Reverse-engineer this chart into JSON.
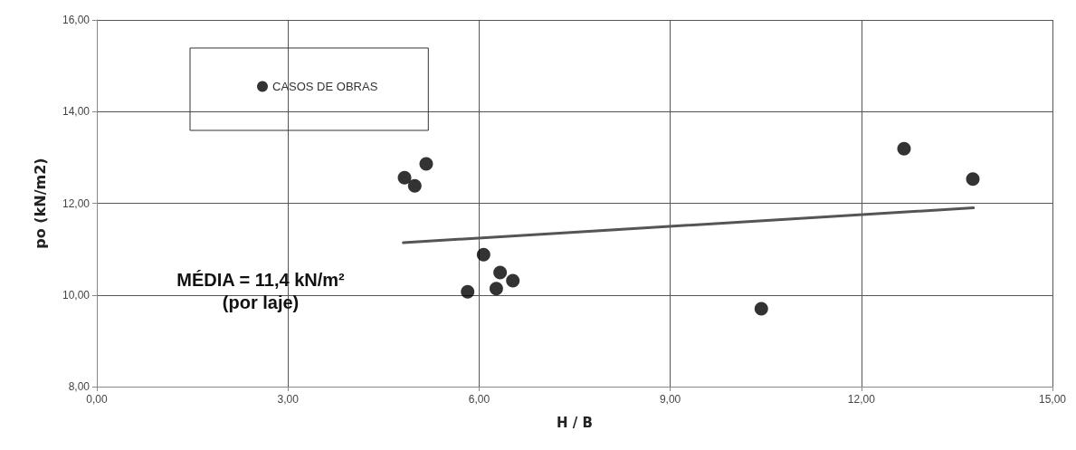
{
  "chart_data": {
    "type": "scatter",
    "xlabel": "H / B",
    "ylabel": "po (kN/m2)",
    "xlim": [
      0,
      15
    ],
    "xticks": [
      {
        "value": 0,
        "label": "0,00"
      },
      {
        "value": 3,
        "label": "3,00"
      },
      {
        "value": 6,
        "label": "6,00"
      },
      {
        "value": 9,
        "label": "9,00"
      },
      {
        "value": 12,
        "label": "12,00"
      },
      {
        "value": 15,
        "label": "15,00"
      }
    ],
    "ylim": [
      8,
      16
    ],
    "yticks": [
      {
        "value": 8,
        "label": "8,00"
      },
      {
        "value": 10,
        "label": "10,00"
      },
      {
        "value": 12,
        "label": "12,00"
      },
      {
        "value": 14,
        "label": "14,00"
      },
      {
        "value": 16,
        "label": "16,00"
      }
    ],
    "series": [
      {
        "name": "CASOS DE OBRAS",
        "type": "scatter",
        "color": "#000000",
        "marker": "circle",
        "x": [
          4.83,
          4.99,
          5.17,
          6.07,
          5.82,
          6.33,
          6.27,
          6.53,
          10.43,
          12.67,
          13.75
        ],
        "values": [
          12.56,
          12.38,
          12.86,
          10.88,
          10.07,
          10.49,
          10.14,
          10.31,
          9.7,
          13.19,
          12.53
        ]
      },
      {
        "type": "line",
        "color": "#555555",
        "line_style": "solid",
        "marker": "none",
        "x": [
          4.81,
          13.76
        ],
        "values": [
          11.14,
          11.9
        ]
      }
    ],
    "annotations": [
      "MÉDIA = 11,4 kN/m²\n(por laje)"
    ],
    "grid": true,
    "legend": "top left"
  }
}
